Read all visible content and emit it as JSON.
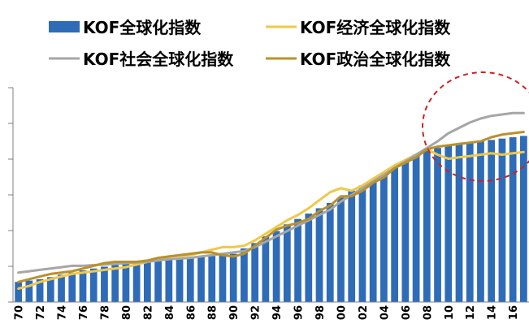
{
  "chart_data": {
    "type": "bar",
    "title": "",
    "xlabel": "",
    "ylabel": "",
    "ylim": [
      20,
      100
    ],
    "grid": false,
    "legend_position": "top",
    "x_tick_labels": [
      "70",
      "72",
      "74",
      "76",
      "78",
      "80",
      "82",
      "84",
      "86",
      "88",
      "90",
      "92",
      "94",
      "96",
      "98",
      "00",
      "02",
      "04",
      "06",
      "08",
      "10",
      "12",
      "14",
      "16"
    ],
    "categories": [
      "1970",
      "1971",
      "1972",
      "1973",
      "1974",
      "1975",
      "1976",
      "1977",
      "1978",
      "1979",
      "1980",
      "1981",
      "1982",
      "1983",
      "1984",
      "1985",
      "1986",
      "1987",
      "1988",
      "1989",
      "1990",
      "1991",
      "1992",
      "1993",
      "1994",
      "1995",
      "1996",
      "1997",
      "1998",
      "1999",
      "2000",
      "2001",
      "2002",
      "2003",
      "2004",
      "2005",
      "2006",
      "2007",
      "2008",
      "2009",
      "2010",
      "2011",
      "2012",
      "2013",
      "2014",
      "2015",
      "2016",
      "2017"
    ],
    "series": [
      {
        "name": "KOF全球化指数",
        "type": "bar",
        "color": "#2e6cb8",
        "values": [
          27.5,
          28,
          28.5,
          29.3,
          30.2,
          31,
          31.8,
          32.5,
          33.2,
          33.8,
          34.5,
          34.8,
          35.1,
          35.4,
          35.7,
          36,
          36.4,
          36.8,
          37.2,
          37.6,
          38,
          40,
          42,
          44.5,
          46.5,
          49,
          51,
          53,
          55,
          57,
          59,
          61.5,
          63.5,
          65.5,
          68,
          70.5,
          72.5,
          75,
          76.5,
          77.5,
          78.5,
          79,
          79.5,
          80,
          80.5,
          81,
          81.5,
          82
        ]
      },
      {
        "name": "KOF经济全球化指数",
        "type": "line",
        "color": "#efc84a",
        "values": [
          25,
          26,
          27.5,
          28.5,
          29.5,
          30.5,
          31,
          31.5,
          32,
          32.5,
          33,
          34,
          35,
          36,
          37,
          37.2,
          37.5,
          38.5,
          39.5,
          40.5,
          40.5,
          41,
          43,
          45.5,
          48,
          50.5,
          52.5,
          55,
          58,
          61,
          62.5,
          61.5,
          63.5,
          66,
          68.5,
          71,
          73,
          75,
          77,
          75,
          73.5,
          74,
          74.5,
          75,
          75.5,
          75,
          75.5,
          76
        ]
      },
      {
        "name": "KOF社会全球化指数",
        "type": "line",
        "color": "#a6a6a6",
        "values": [
          31,
          31.5,
          32,
          32.5,
          33,
          33.5,
          33.5,
          33.8,
          34,
          34.2,
          34.5,
          34.8,
          35,
          35.5,
          36,
          36.2,
          36.5,
          37,
          37.5,
          38,
          38.5,
          39,
          40.5,
          42.5,
          44.5,
          46.5,
          48.5,
          50.5,
          52.5,
          54.5,
          57.5,
          60,
          62.5,
          65,
          67.5,
          70,
          72.5,
          75,
          77.5,
          80,
          83,
          85,
          87,
          88.5,
          89.5,
          90,
          90.5,
          90.5
        ]
      },
      {
        "name": "KOF政治全球化指数",
        "type": "line",
        "color": "#bb9029",
        "values": [
          27.5,
          28.5,
          29.5,
          30.5,
          31,
          31.5,
          32.5,
          33.5,
          34.5,
          35,
          35,
          35,
          35.5,
          36.5,
          37,
          37.5,
          38,
          38.5,
          38.5,
          37.5,
          37,
          38,
          41,
          44,
          47,
          48.5,
          49.5,
          51,
          54,
          56,
          59.5,
          59.5,
          61.5,
          64.5,
          66.5,
          70,
          72,
          74,
          77,
          78,
          78.5,
          79,
          79.5,
          80,
          81.5,
          82.5,
          83,
          83.5
        ]
      }
    ]
  }
}
